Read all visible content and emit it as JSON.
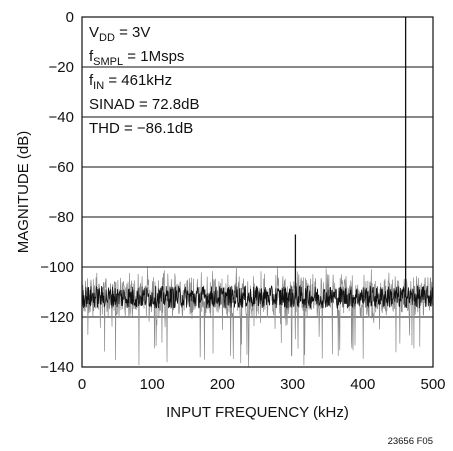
{
  "chart_data": {
    "type": "line",
    "title": "",
    "xlabel": "INPUT FREQUENCY (kHz)",
    "ylabel": "MAGNITUDE (dB)",
    "xlim": [
      0,
      500
    ],
    "ylim": [
      -140,
      0
    ],
    "xticks": [
      "0",
      "100",
      "200",
      "300",
      "400",
      "500"
    ],
    "yticks": [
      "0",
      "−20",
      "−40",
      "−60",
      "−80",
      "−100",
      "−120",
      "−140"
    ],
    "grid": "horizontal",
    "annotations": [
      {
        "main": "V",
        "sub": "DD",
        "rest": " = 3V"
      },
      {
        "main": "f",
        "sub": "SMPL",
        "rest": " = 1Msps"
      },
      {
        "main": "f",
        "sub": "IN",
        "rest": " = 461kHz"
      },
      {
        "main": "SINAD = 72.8dB",
        "sub": "",
        "rest": ""
      },
      {
        "main": "THD = −86.1dB",
        "sub": "",
        "rest": ""
      }
    ],
    "series": [
      {
        "noise_floor_db": -112,
        "noise_min_db": -140,
        "noise_max_db": -100,
        "peaks": [
          {
            "x": 461,
            "y": 0
          },
          {
            "x": 304,
            "y": -87
          }
        ]
      }
    ],
    "figure_id": "23656 F05"
  }
}
